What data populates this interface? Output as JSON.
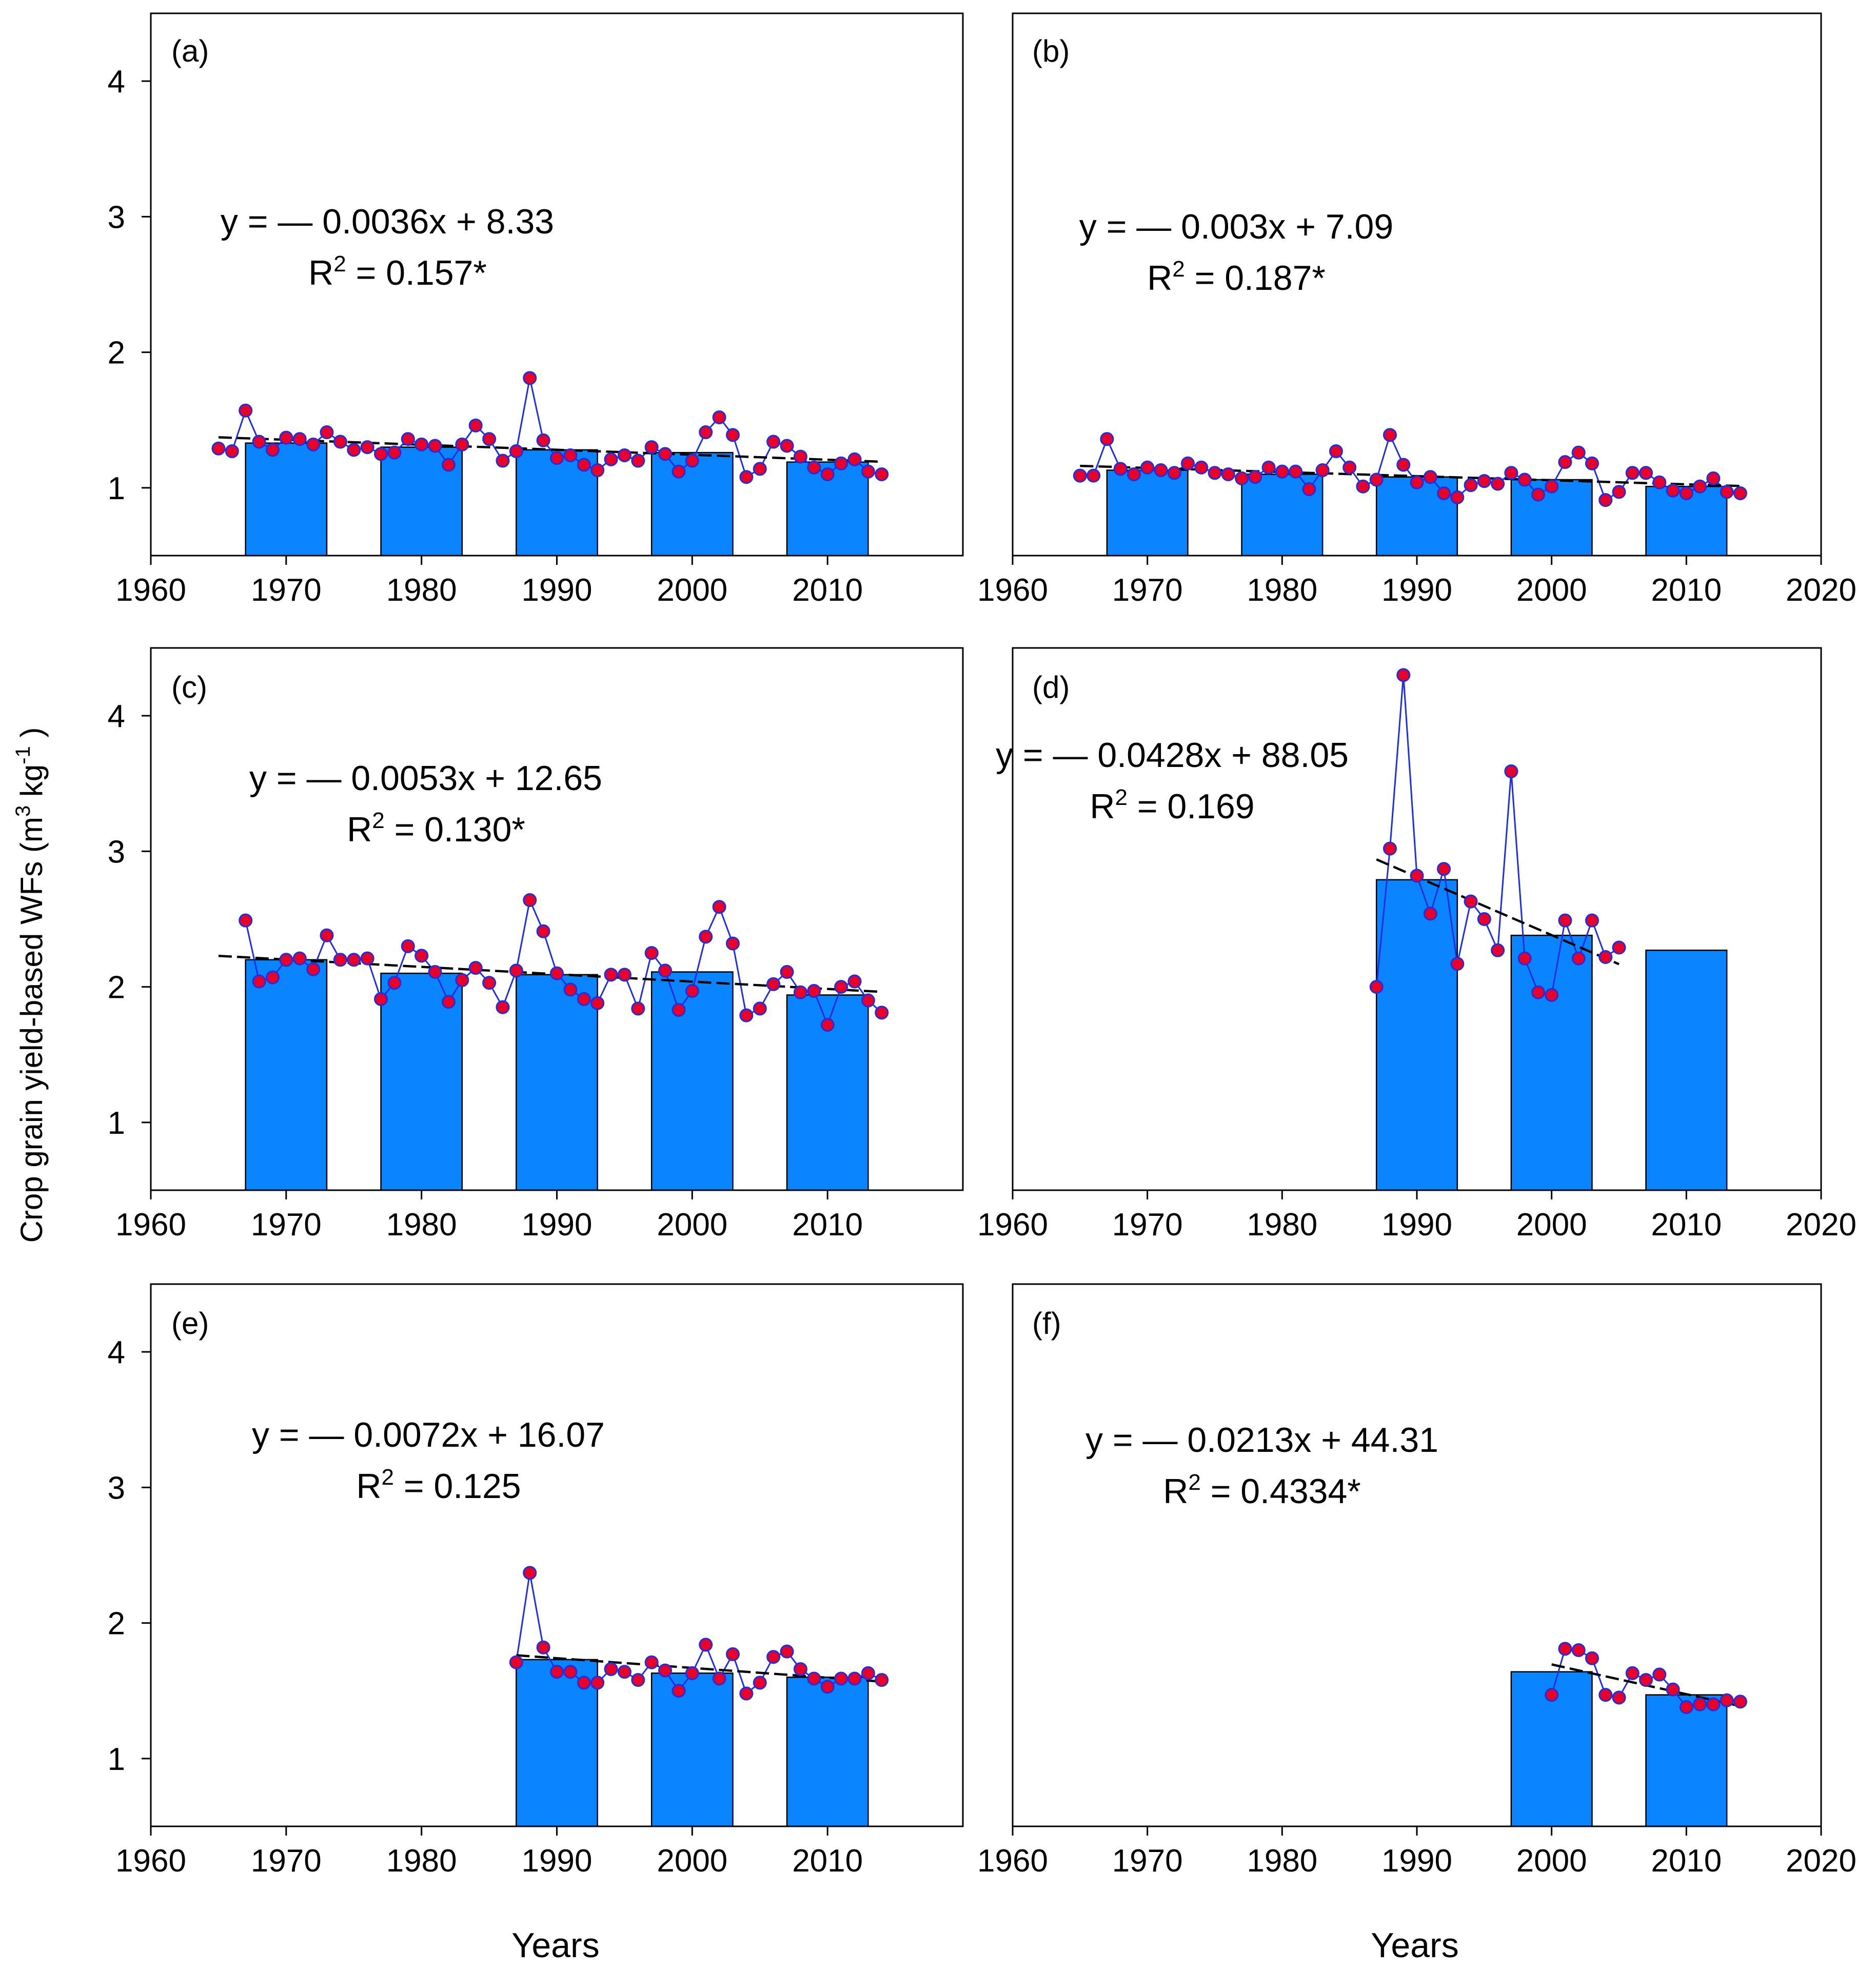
{
  "figure": {
    "ylabel_main": "Crop grain yield-based WFs (m",
    "ylabel_sup1": "3",
    "ylabel_mid": " kg",
    "ylabel_sup2": "-1",
    "ylabel_end": " )",
    "xlabel": "Years",
    "colors": {
      "bar": "#0a84ff",
      "line": "#1f2ee0",
      "marker": "#e8002a",
      "trend": "#000000"
    }
  },
  "chart_data": [
    {
      "id": "a",
      "type": "bar+line",
      "label": "(a)",
      "eq_line1": "y = — 0.0036x + 8.33",
      "eq_line2_pre": "R",
      "eq_line2_sup": "2",
      "eq_line2_post": " = 0.157*",
      "xlim": [
        1960,
        2020
      ],
      "ylim": [
        0.5,
        4.5
      ],
      "xticks": [
        "1960",
        "1970",
        "1980",
        "1990",
        "2000",
        "2010"
      ],
      "yticks": [
        "1",
        "2",
        "3",
        "4"
      ],
      "decadal_bars": [
        {
          "center": 1970,
          "value": 1.33
        },
        {
          "center": 1980,
          "value": 1.3
        },
        {
          "center": 1990,
          "value": 1.28
        },
        {
          "center": 2000,
          "value": 1.26
        },
        {
          "center": 2010,
          "value": 1.19
        }
      ],
      "series": {
        "years": [
          1965,
          1966,
          1967,
          1968,
          1969,
          1970,
          1971,
          1972,
          1973,
          1974,
          1975,
          1976,
          1977,
          1978,
          1979,
          1980,
          1981,
          1982,
          1983,
          1984,
          1985,
          1986,
          1987,
          1988,
          1989,
          1990,
          1991,
          1992,
          1993,
          1994,
          1995,
          1996,
          1997,
          1998,
          1999,
          2000,
          2001,
          2002,
          2003,
          2004,
          2005,
          2006,
          2007,
          2008,
          2009,
          2010,
          2011,
          2012,
          2013,
          2014
        ],
        "values": [
          1.29,
          1.27,
          1.57,
          1.34,
          1.28,
          1.37,
          1.36,
          1.32,
          1.41,
          1.34,
          1.28,
          1.3,
          1.25,
          1.26,
          1.36,
          1.32,
          1.31,
          1.17,
          1.32,
          1.46,
          1.36,
          1.2,
          1.27,
          1.81,
          1.35,
          1.22,
          1.24,
          1.17,
          1.13,
          1.21,
          1.24,
          1.2,
          1.3,
          1.25,
          1.12,
          1.2,
          1.41,
          1.52,
          1.39,
          1.08,
          1.14,
          1.34,
          1.31,
          1.23,
          1.15,
          1.1,
          1.18,
          1.21,
          1.12,
          1.1
        ]
      },
      "trend": {
        "x": [
          1965,
          2014
        ]
      }
    },
    {
      "id": "b",
      "type": "bar+line",
      "label": "(b)",
      "eq_line1": "y = — 0.003x + 7.09",
      "eq_line2_pre": "R",
      "eq_line2_sup": "2",
      "eq_line2_post": " = 0.187*",
      "xlim": [
        1960,
        2020
      ],
      "ylim": [
        0.5,
        4.5
      ],
      "xticks": [
        "1960",
        "1970",
        "1980",
        "1990",
        "2000",
        "2010",
        "2020"
      ],
      "yticks": [],
      "decadal_bars": [
        {
          "center": 1970,
          "value": 1.13
        },
        {
          "center": 1980,
          "value": 1.1
        },
        {
          "center": 1990,
          "value": 1.08
        },
        {
          "center": 2000,
          "value": 1.06
        },
        {
          "center": 2010,
          "value": 1.01
        }
      ],
      "series": {
        "years": [
          1965,
          1966,
          1967,
          1968,
          1969,
          1970,
          1971,
          1972,
          1973,
          1974,
          1975,
          1976,
          1977,
          1978,
          1979,
          1980,
          1981,
          1982,
          1983,
          1984,
          1985,
          1986,
          1987,
          1988,
          1989,
          1990,
          1991,
          1992,
          1993,
          1994,
          1995,
          1996,
          1997,
          1998,
          1999,
          2000,
          2001,
          2002,
          2003,
          2004,
          2005,
          2006,
          2007,
          2008,
          2009,
          2010,
          2011,
          2012,
          2013,
          2014
        ],
        "values": [
          1.09,
          1.09,
          1.36,
          1.14,
          1.1,
          1.15,
          1.13,
          1.11,
          1.18,
          1.15,
          1.11,
          1.1,
          1.07,
          1.08,
          1.15,
          1.12,
          1.12,
          0.99,
          1.13,
          1.27,
          1.15,
          1.01,
          1.06,
          1.39,
          1.17,
          1.04,
          1.08,
          0.96,
          0.93,
          1.02,
          1.05,
          1.03,
          1.11,
          1.06,
          0.95,
          1.01,
          1.19,
          1.26,
          1.18,
          0.91,
          0.97,
          1.11,
          1.11,
          1.04,
          0.98,
          0.96,
          1.01,
          1.07,
          0.97,
          0.96
        ]
      },
      "trend": {
        "x": [
          1965,
          2014
        ]
      }
    },
    {
      "id": "c",
      "type": "bar+line",
      "label": "(c)",
      "eq_line1": "y = — 0.0053x + 12.65",
      "eq_line2_pre": "R",
      "eq_line2_sup": "2",
      "eq_line2_post": " = 0.130*",
      "xlim": [
        1960,
        2020
      ],
      "ylim": [
        0.5,
        4.5
      ],
      "xticks": [
        "1960",
        "1970",
        "1980",
        "1990",
        "2000",
        "2010"
      ],
      "yticks": [
        "1",
        "2",
        "3",
        "4"
      ],
      "decadal_bars": [
        {
          "center": 1970,
          "value": 2.2
        },
        {
          "center": 1980,
          "value": 2.1
        },
        {
          "center": 1990,
          "value": 2.09
        },
        {
          "center": 2000,
          "value": 2.11
        },
        {
          "center": 2010,
          "value": 1.94
        }
      ],
      "series": {
        "years": [
          1967,
          1968,
          1969,
          1970,
          1971,
          1972,
          1973,
          1974,
          1975,
          1976,
          1977,
          1978,
          1979,
          1980,
          1981,
          1982,
          1983,
          1984,
          1985,
          1986,
          1987,
          1988,
          1989,
          1990,
          1991,
          1992,
          1993,
          1994,
          1995,
          1996,
          1997,
          1998,
          1999,
          2000,
          2001,
          2002,
          2003,
          2004,
          2005,
          2006,
          2007,
          2008,
          2009,
          2010,
          2011,
          2012,
          2013,
          2014
        ],
        "values": [
          2.49,
          2.04,
          2.07,
          2.2,
          2.21,
          2.13,
          2.38,
          2.2,
          2.2,
          2.21,
          1.91,
          2.03,
          2.3,
          2.23,
          2.11,
          1.89,
          2.05,
          2.14,
          2.03,
          1.85,
          2.12,
          2.64,
          2.41,
          2.1,
          1.98,
          1.91,
          1.88,
          2.09,
          2.09,
          1.84,
          2.25,
          2.12,
          1.83,
          1.97,
          2.37,
          2.59,
          2.32,
          1.79,
          1.84,
          2.02,
          2.11,
          1.96,
          1.97,
          1.72,
          2.0,
          2.04,
          1.9,
          1.81
        ]
      },
      "trend": {
        "x": [
          1965,
          2014
        ]
      }
    },
    {
      "id": "d",
      "type": "bar+line",
      "label": "(d)",
      "eq_line1": "y = — 0.0428x + 88.05",
      "eq_line2_pre": "R",
      "eq_line2_sup": "2",
      "eq_line2_post": " = 0.169",
      "xlim": [
        1960,
        2020
      ],
      "ylim": [
        0.5,
        4.5
      ],
      "xticks": [
        "1960",
        "1970",
        "1980",
        "1990",
        "2000",
        "2010",
        "2020"
      ],
      "yticks": [],
      "decadal_bars": [
        {
          "center": 1990,
          "value": 2.79
        },
        {
          "center": 2000,
          "value": 2.38
        },
        {
          "center": 2010,
          "value": 2.27
        }
      ],
      "series": {
        "years": [
          1987,
          1988,
          1989,
          1990,
          1991,
          1992,
          1993,
          1994,
          1995,
          1996,
          1997,
          1998,
          1999,
          2000,
          2001,
          2002,
          2003,
          2004,
          2005
        ],
        "values": [
          2.0,
          3.02,
          4.3,
          2.82,
          2.54,
          2.87,
          2.17,
          2.63,
          2.5,
          2.27,
          3.59,
          2.21,
          1.96,
          1.94,
          2.49,
          2.21,
          2.49,
          2.22,
          2.29
        ]
      },
      "trend": {
        "x": [
          1987,
          2005
        ]
      }
    },
    {
      "id": "e",
      "type": "bar+line",
      "label": "(e)",
      "eq_line1": "y = — 0.0072x + 16.07",
      "eq_line2_pre": "R",
      "eq_line2_sup": "2",
      "eq_line2_post": " = 0.125",
      "xlim": [
        1960,
        2020
      ],
      "ylim": [
        0.5,
        4.5
      ],
      "xticks": [
        "1960",
        "1970",
        "1980",
        "1990",
        "2000",
        "2010"
      ],
      "yticks": [
        "1",
        "2",
        "3",
        "4"
      ],
      "decadal_bars": [
        {
          "center": 1990,
          "value": 1.73
        },
        {
          "center": 2000,
          "value": 1.63
        },
        {
          "center": 2010,
          "value": 1.6
        }
      ],
      "series": {
        "years": [
          1987,
          1988,
          1989,
          1990,
          1991,
          1992,
          1993,
          1994,
          1995,
          1996,
          1997,
          1998,
          1999,
          2000,
          2001,
          2002,
          2003,
          2004,
          2005,
          2006,
          2007,
          2008,
          2009,
          2010,
          2011,
          2012,
          2013,
          2014
        ],
        "values": [
          1.71,
          2.37,
          1.82,
          1.64,
          1.64,
          1.56,
          1.56,
          1.66,
          1.64,
          1.58,
          1.71,
          1.65,
          1.5,
          1.63,
          1.84,
          1.59,
          1.77,
          1.48,
          1.56,
          1.75,
          1.79,
          1.66,
          1.59,
          1.53,
          1.59,
          1.59,
          1.63,
          1.58
        ]
      },
      "trend": {
        "x": [
          1987,
          2014
        ]
      }
    },
    {
      "id": "f",
      "type": "bar+line",
      "label": "(f)",
      "eq_line1": "y = — 0.0213x + 44.31",
      "eq_line2_pre": "R",
      "eq_line2_sup": "2",
      "eq_line2_post": " = 0.4334*",
      "xlim": [
        1960,
        2020
      ],
      "ylim": [
        0.5,
        4.5
      ],
      "xticks": [
        "1960",
        "1970",
        "1980",
        "1990",
        "2000",
        "2010",
        "2020"
      ],
      "yticks": [],
      "decadal_bars": [
        {
          "center": 2000,
          "value": 1.64
        },
        {
          "center": 2010,
          "value": 1.47
        }
      ],
      "series": {
        "years": [
          2000,
          2001,
          2002,
          2003,
          2004,
          2005,
          2006,
          2007,
          2008,
          2009,
          2010,
          2011,
          2012,
          2013,
          2014
        ],
        "values": [
          1.47,
          1.81,
          1.8,
          1.74,
          1.47,
          1.45,
          1.63,
          1.58,
          1.62,
          1.51,
          1.38,
          1.4,
          1.4,
          1.43,
          1.42
        ]
      },
      "trend": {
        "x": [
          2000,
          2014
        ]
      }
    }
  ]
}
